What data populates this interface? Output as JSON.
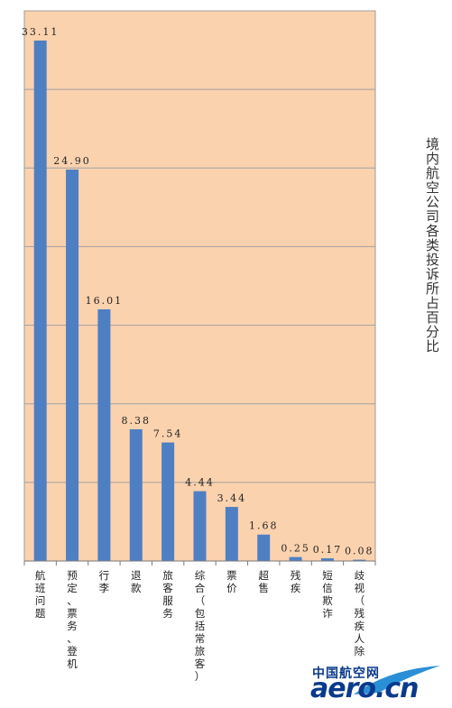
{
  "chart_data": {
    "type": "bar",
    "title": "境内航空公司各类投诉所占百分比",
    "categories": [
      "航班问题",
      "预定、票务、登机",
      "行李",
      "退款",
      "旅客服务",
      "综合（包括常旅客）",
      "票价",
      "超售",
      "残疾",
      "短信欺诈",
      "歧视（残疾人除"
    ],
    "values": [
      33.11,
      24.9,
      16.01,
      8.38,
      7.54,
      4.44,
      3.44,
      1.68,
      0.25,
      0.17,
      0.08
    ],
    "value_labels": [
      "33.11",
      "24.90",
      "16.01",
      "8.38",
      "7.54",
      "4.44",
      "3.44",
      "1.68",
      "0.25",
      "0.17",
      "0.08"
    ],
    "ylim": [
      0,
      35
    ],
    "grid": true,
    "colors": {
      "plot_background": "#fbd2ae",
      "bar": "#4f7fc3",
      "grid": "#a0a0a0"
    }
  },
  "watermark": {
    "cn_text": "中国航空网",
    "en_text": "aero.cn"
  }
}
